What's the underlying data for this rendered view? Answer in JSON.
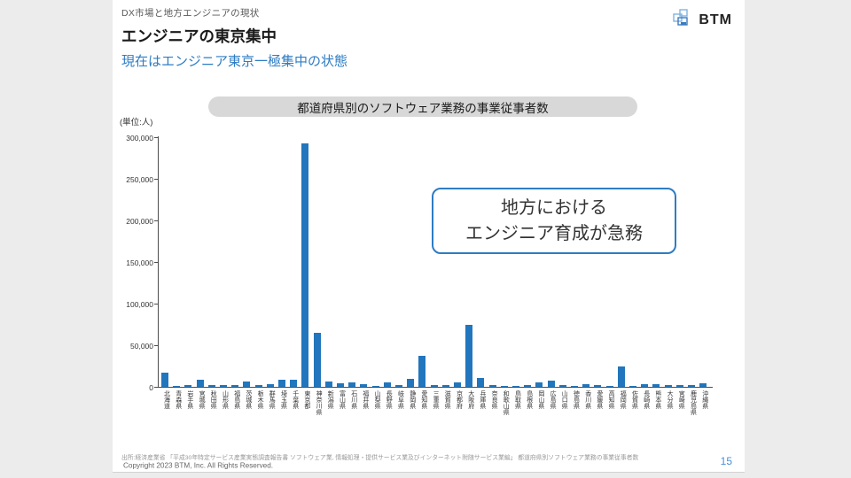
{
  "slide": {
    "breadcrumb": "DX市場と地方エンジニアの現状",
    "title": "エンジニアの東京集中",
    "subtitle": "現在はエンジニア東京一極集中の状態",
    "logo_text": "BTM",
    "banner": "都道府県別のソフトウェア業務の事業従事者数",
    "callout_line1": "地方における",
    "callout_line2": "エンジニア育成が急務",
    "source": "出所:経済産業省 「平成30年特定サービス産業実態調査報告書 ソフトウェア業, 情報処理・提供サービス業及びインターネット附随サービス業編」 都道府県別ソフトウェア業務の事業従事者数",
    "copyright": "Copyright 2023 BTM, Inc. All Rights Reserved.",
    "page_number": "15"
  },
  "colors": {
    "bar": "#2176bd",
    "accent_blue": "#2e7cc3",
    "banner_bg": "#d8d8d8",
    "page_bg": "#ececec"
  },
  "chart_data": {
    "type": "bar",
    "title": "都道府県別のソフトウェア業務の事業従事者数",
    "xlabel": "",
    "ylabel": "(単位:人)",
    "ylim": [
      0,
      300000
    ],
    "yticks": [
      0,
      50000,
      100000,
      150000,
      200000,
      250000,
      300000
    ],
    "grid": false,
    "legend": false,
    "categories": [
      "北海道",
      "青森県",
      "岩手県",
      "宮城県",
      "秋田県",
      "山形県",
      "福島県",
      "茨城県",
      "栃木県",
      "群馬県",
      "埼玉県",
      "千葉県",
      "東京都",
      "神奈川県",
      "新潟県",
      "富山県",
      "石川県",
      "福井県",
      "山梨県",
      "長野県",
      "岐阜県",
      "静岡県",
      "愛知県",
      "三重県",
      "滋賀県",
      "京都府",
      "大阪府",
      "兵庫県",
      "奈良県",
      "和歌山県",
      "鳥取県",
      "島根県",
      "岡山県",
      "広島県",
      "山口県",
      "徳島県",
      "香川県",
      "愛媛県",
      "高知県",
      "福岡県",
      "佐賀県",
      "長崎県",
      "熊本県",
      "大分県",
      "宮崎県",
      "鹿児島県",
      "沖縄県"
    ],
    "values": [
      17000,
      1500,
      2200,
      8000,
      1800,
      2100,
      2600,
      6300,
      2300,
      3600,
      8700,
      8900,
      293000,
      65000,
      6300,
      3800,
      4800,
      2700,
      1100,
      5500,
      2600,
      9600,
      37000,
      2400,
      1900,
      5500,
      74000,
      10200,
      1800,
      1200,
      1000,
      2000,
      5400,
      7300,
      2300,
      1100,
      2800,
      2500,
      1000,
      24000,
      900,
      2700,
      3300,
      2100,
      2100,
      2600,
      4100
    ]
  }
}
